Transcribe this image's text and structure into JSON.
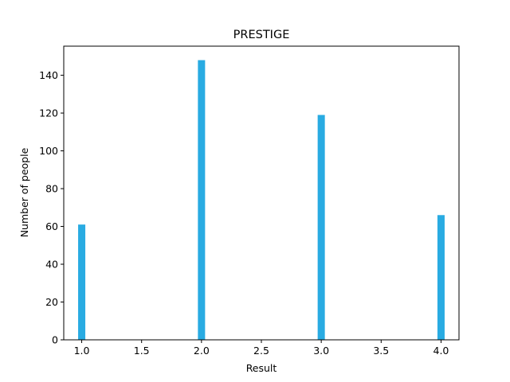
{
  "chart_data": {
    "type": "bar",
    "title": "PRESTIGE",
    "xlabel": "Result",
    "ylabel": "Number of people",
    "x": [
      1,
      2,
      3,
      4
    ],
    "values": [
      61,
      148,
      119,
      66
    ],
    "xlim": [
      0.85,
      4.15
    ],
    "ylim": [
      0,
      155.4
    ],
    "xticks": [
      1.0,
      1.5,
      2.0,
      2.5,
      3.0,
      3.5,
      4.0
    ],
    "xtick_labels": [
      "1.0",
      "1.5",
      "2.0",
      "2.5",
      "3.0",
      "3.5",
      "4.0"
    ],
    "yticks": [
      0,
      20,
      40,
      60,
      80,
      100,
      120,
      140
    ],
    "ytick_labels": [
      "0",
      "20",
      "40",
      "60",
      "80",
      "100",
      "120",
      "140"
    ],
    "bar_width": 0.06,
    "bar_color": "#29abe2",
    "grid": false,
    "legend": "none"
  }
}
